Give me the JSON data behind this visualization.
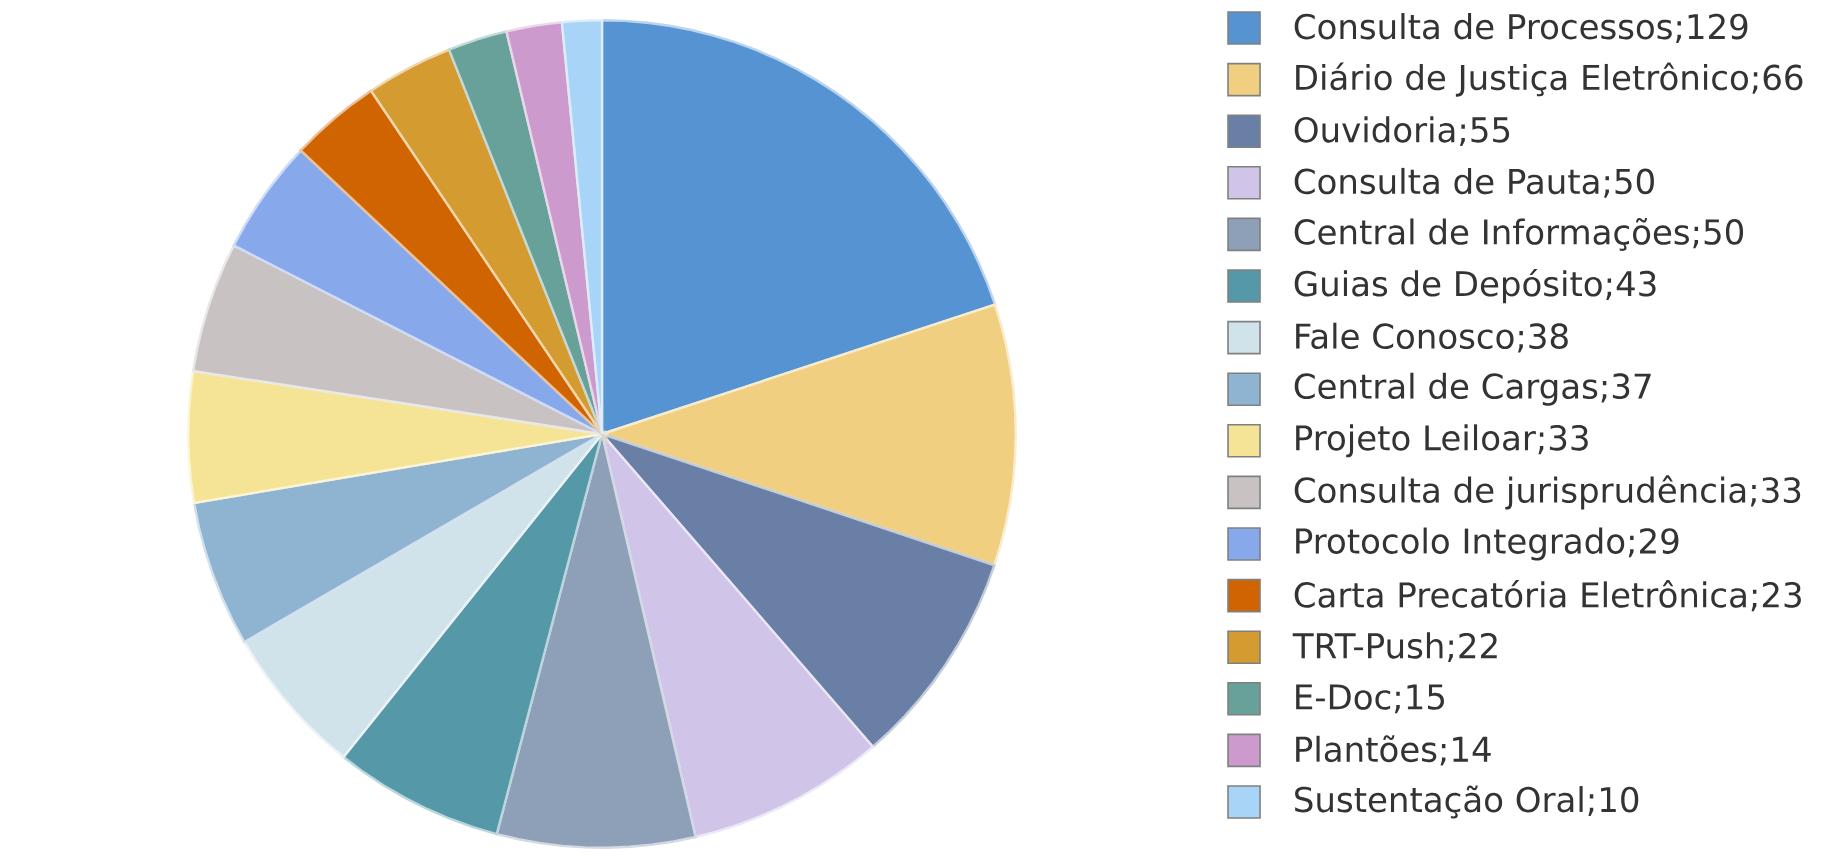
{
  "chart_data": {
    "type": "pie",
    "legend": "right",
    "categories": [
      "Consulta de Processos;129",
      "Diário de Justiça Eletrônico;66",
      "Ouvidoria;55",
      "Consulta de Pauta;50",
      "Central de Informações;50",
      "Guias de Depósito;43",
      "Fale Conosco;38",
      "Central de Cargas;37",
      "Projeto Leiloar;33",
      "Consulta de jurisprudência;33",
      "Protocolo Integrado;29",
      "Carta Precatória Eletrônica;23",
      "TRT-Push;22",
      "E-Doc;15",
      "Plantões;14",
      "Sustentação Oral;10"
    ],
    "values": [
      129,
      66,
      55,
      50,
      50,
      43,
      38,
      37,
      33,
      33,
      29,
      23,
      22,
      15,
      14,
      10
    ],
    "colors": [
      "#5593d3",
      "#f0d080",
      "#6a7fa6",
      "#d0c4e8",
      "#8ea0b8",
      "#5598a8",
      "#d0e2ea",
      "#8fb4d2",
      "#f5e496",
      "#c8c2c2",
      "#88a8ec",
      "#d06400",
      "#d49c30",
      "#68a09a",
      "#cc9acc",
      "#a8d4f8"
    ]
  }
}
